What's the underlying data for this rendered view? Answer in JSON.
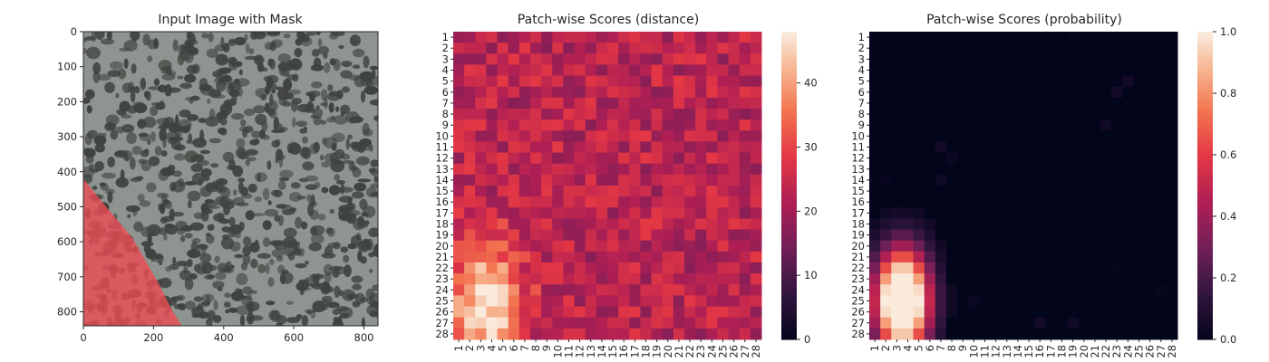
{
  "chart_data": [
    {
      "type": "image",
      "title": "Input Image with Mask",
      "xlabel": "",
      "ylabel": "",
      "xlim": [
        0,
        840
      ],
      "ylim": [
        840,
        0
      ],
      "x_ticks": [
        "0",
        "200",
        "400",
        "600",
        "800"
      ],
      "y_ticks": [
        "0",
        "100",
        "200",
        "300",
        "400",
        "500",
        "600",
        "700",
        "800"
      ],
      "image_description_colors": {
        "texture_light": "#8e948f",
        "texture_dark": "#3f4340",
        "mask": "#ee4a52"
      },
      "mask_polygon": [
        [
          0,
          420
        ],
        [
          40,
          470
        ],
        [
          90,
          530
        ],
        [
          140,
          590
        ],
        [
          175,
          650
        ],
        [
          215,
          720
        ],
        [
          250,
          790
        ],
        [
          280,
          840
        ],
        [
          0,
          840
        ]
      ]
    },
    {
      "type": "heatmap",
      "title": "Patch-wise Scores (distance)",
      "rows": 28,
      "cols": 28,
      "x_ticks": [
        "1",
        "2",
        "3",
        "4",
        "5",
        "6",
        "7",
        "8",
        "9",
        "10",
        "11",
        "12",
        "13",
        "14",
        "15",
        "16",
        "17",
        "18",
        "19",
        "20",
        "21",
        "22",
        "23",
        "24",
        "25",
        "26",
        "27",
        "28"
      ],
      "y_ticks": [
        "1",
        "2",
        "3",
        "4",
        "5",
        "6",
        "7",
        "8",
        "9",
        "10",
        "11",
        "12",
        "13",
        "14",
        "15",
        "16",
        "17",
        "18",
        "19",
        "20",
        "21",
        "22",
        "23",
        "24",
        "25",
        "26",
        "27",
        "28"
      ],
      "colorbar": {
        "min": 0,
        "max": 48,
        "ticks": [
          "0",
          "10",
          "20",
          "30",
          "40"
        ],
        "colormap": "rocket"
      },
      "background_value": 23,
      "hotspot": {
        "center_row": 25.5,
        "center_col": 3.5,
        "peak": 48,
        "spread_rows": 5.5,
        "spread_cols": 3.2
      }
    },
    {
      "type": "heatmap",
      "title": "Patch-wise Scores (probability)",
      "rows": 28,
      "cols": 28,
      "x_ticks": [
        "1",
        "2",
        "3",
        "4",
        "5",
        "6",
        "7",
        "8",
        "9",
        "10",
        "11",
        "12",
        "13",
        "14",
        "15",
        "16",
        "17",
        "18",
        "19",
        "20",
        "21",
        "22",
        "23",
        "24",
        "25",
        "26",
        "27",
        "28"
      ],
      "y_ticks": [
        "1",
        "2",
        "3",
        "4",
        "5",
        "6",
        "7",
        "8",
        "9",
        "10",
        "11",
        "12",
        "13",
        "14",
        "15",
        "16",
        "17",
        "18",
        "19",
        "20",
        "21",
        "22",
        "23",
        "24",
        "25",
        "26",
        "27",
        "28"
      ],
      "colorbar": {
        "min": 0.0,
        "max": 1.0,
        "ticks": [
          "0.0",
          "0.2",
          "0.4",
          "0.6",
          "0.8",
          "1.0"
        ],
        "colormap": "rocket"
      },
      "background_value": 0.0,
      "hotspot": {
        "center_row": 25,
        "center_col": 3.5,
        "peak": 1.0,
        "spread_rows": 4.5,
        "spread_cols": 2.4
      }
    }
  ]
}
